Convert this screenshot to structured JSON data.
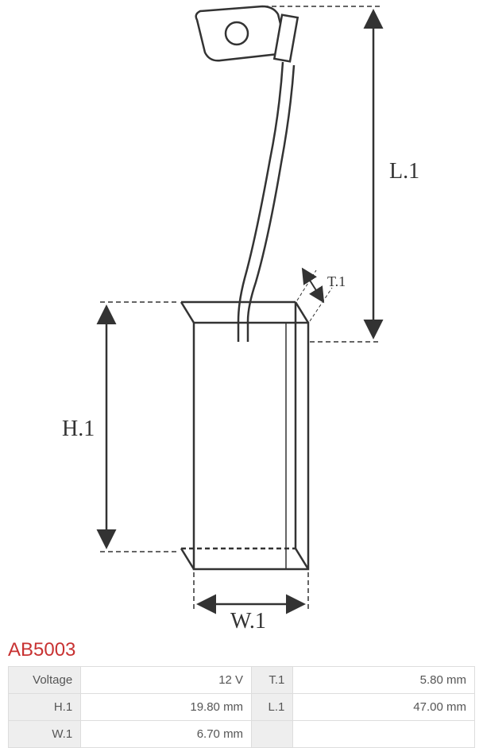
{
  "product_code": "AB5003",
  "product_code_color": "#c83232",
  "diagram": {
    "stroke_color": "#333333",
    "stroke_width": 2.5,
    "dash_pattern": "6,4",
    "background": "#ffffff",
    "labels": {
      "L1": "L.1",
      "H1": "H.1",
      "W1": "W.1",
      "T1": "T.1"
    }
  },
  "specs": [
    {
      "left_label": "Voltage",
      "left_value": "12 V",
      "right_label": "T.1",
      "right_value": "5.80 mm"
    },
    {
      "left_label": "H.1",
      "left_value": "19.80 mm",
      "right_label": "L.1",
      "right_value": "47.00 mm"
    },
    {
      "left_label": "W.1",
      "left_value": "6.70 mm",
      "right_label": "",
      "right_value": ""
    }
  ],
  "table_colors": {
    "border": "#dddddd",
    "label_bg": "#eeeeee",
    "value_bg": "#ffffff",
    "text": "#555555"
  }
}
